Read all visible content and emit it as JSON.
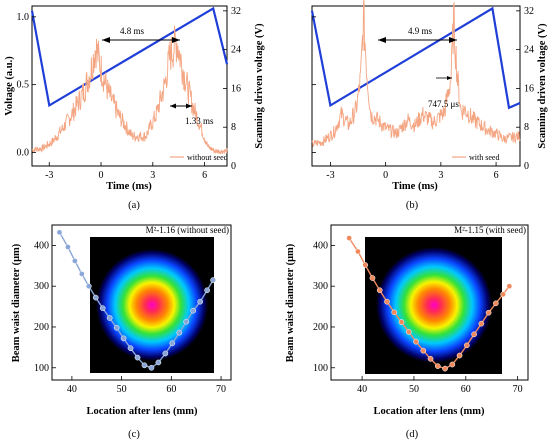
{
  "chart_data": [
    {
      "panel_label": "(a)",
      "type": "line",
      "xlabel": "Time (ms)",
      "ylabel_left": "Voltage (a.u.)",
      "ylabel_right": "Scanning driven voltage (V)",
      "xlim": [
        -4,
        7.3
      ],
      "ylim_left": [
        -0.1,
        1.08
      ],
      "ylim_right": [
        0,
        33
      ],
      "xticks": [
        "-3",
        "0",
        "3",
        "6"
      ],
      "yticks_left": [
        "0.0",
        "0.5",
        "1.0"
      ],
      "yticks_right": [
        "0",
        "8",
        "16",
        "24",
        "32"
      ],
      "legend": [
        {
          "label": "without seed",
          "color": "#f4a582"
        }
      ],
      "annotations": [
        "4.8 ms",
        "1.33 ms"
      ],
      "series": [
        {
          "axis": "right",
          "color": "#1f3fd8",
          "x": [
            -4,
            -3,
            6.5,
            7.3
          ],
          "y": [
            32,
            12.5,
            32.5,
            21
          ]
        },
        {
          "axis": "left",
          "name": "without seed",
          "color": "#f4a582",
          "x": [
            -4,
            -3.4,
            -2.8,
            -2.2,
            -1.6,
            -1.0,
            -0.6,
            -0.3,
            0.0,
            0.4,
            1.0,
            1.8,
            2.6,
            3.2,
            3.7,
            4.0,
            4.4,
            4.8,
            5.3,
            5.8,
            6.2,
            6.6,
            7.3
          ],
          "y": [
            0.02,
            0.03,
            0.08,
            0.18,
            0.3,
            0.45,
            0.6,
            0.78,
            0.62,
            0.45,
            0.28,
            0.12,
            0.12,
            0.28,
            0.5,
            0.72,
            0.82,
            0.58,
            0.35,
            0.18,
            0.04,
            0.01,
            0.01
          ]
        }
      ]
    },
    {
      "panel_label": "(b)",
      "type": "line",
      "xlabel": "Time (ms)",
      "ylabel_right": "Scanning driven voltage (V)",
      "xlim": [
        -4,
        7.3
      ],
      "ylim_left": [
        -0.1,
        1.08
      ],
      "ylim_right": [
        0,
        33
      ],
      "xticks": [
        "-3",
        "0",
        "3",
        "6"
      ],
      "yticks_right": [
        "0",
        "8",
        "16",
        "24",
        "32"
      ],
      "legend": [
        {
          "label": "with seed",
          "color": "#f4a582"
        }
      ],
      "annotations": [
        "4.9 ms",
        "747.5 μs"
      ],
      "series": [
        {
          "axis": "right",
          "color": "#1f3fd8",
          "x": [
            -4,
            -3,
            5.8,
            6.7,
            7.3
          ],
          "y": [
            32,
            12.5,
            32.5,
            12,
            13
          ]
        },
        {
          "axis": "left",
          "name": "with seed",
          "color": "#f4a582",
          "x": [
            -4,
            -3.4,
            -2.8,
            -2.4,
            -2.0,
            -1.6,
            -1.35,
            -1.2,
            -1.0,
            -0.8,
            -0.5,
            0.0,
            0.6,
            1.2,
            1.6,
            2.0,
            2.6,
            3.2,
            3.55,
            3.7,
            3.9,
            4.1,
            4.3,
            4.7,
            5.2,
            5.6,
            6.0,
            6.4,
            7.3
          ],
          "y": [
            0.06,
            0.08,
            0.15,
            0.28,
            0.2,
            0.32,
            0.55,
            1.0,
            0.55,
            0.28,
            0.25,
            0.18,
            0.14,
            0.24,
            0.2,
            0.28,
            0.22,
            0.3,
            0.55,
            0.98,
            0.55,
            0.3,
            0.32,
            0.25,
            0.2,
            0.16,
            0.14,
            0.1,
            0.12
          ]
        }
      ]
    },
    {
      "panel_label": "(c)",
      "type": "scatter",
      "xlabel": "Location after lens (mm)",
      "ylabel": "Beam waist diameter (μm)",
      "xlim": [
        36,
        72
      ],
      "ylim": [
        70,
        450
      ],
      "xticks": [
        "40",
        "50",
        "60",
        "70"
      ],
      "yticks": [
        "100",
        "200",
        "300",
        "400"
      ],
      "inset_label": "M²-1.16 (without seed)",
      "series": [
        {
          "color": "#8aa6d6",
          "x": [
            37.5,
            39.2,
            40.6,
            42.0,
            43.4,
            44.8,
            46.2,
            47.6,
            49.0,
            50.4,
            51.8,
            53.2,
            54.6,
            56.0,
            57.4,
            58.8,
            60.2,
            61.6,
            63.0,
            64.4,
            65.8,
            67.2,
            68.4
          ],
          "y": [
            432,
            396,
            362,
            330,
            300,
            272,
            246,
            222,
            198,
            172,
            148,
            125,
            106,
            100,
            113,
            135,
            160,
            186,
            213,
            240,
            262,
            290,
            315
          ]
        }
      ]
    },
    {
      "panel_label": "(d)",
      "type": "scatter",
      "xlabel": "Location after lens (mm)",
      "ylabel": "Beam waist diameter (μm)",
      "xlim": [
        34,
        72
      ],
      "ylim": [
        70,
        450
      ],
      "xticks": [
        "40",
        "50",
        "60",
        "70"
      ],
      "yticks": [
        "100",
        "200",
        "300",
        "400"
      ],
      "inset_label": "M²-1.15 (with seed)",
      "series": [
        {
          "color": "#f08a5d",
          "x": [
            37.5,
            39.2,
            40.6,
            42.0,
            43.4,
            44.8,
            46.2,
            47.6,
            49.0,
            50.4,
            51.8,
            53.2,
            54.6,
            56.0,
            57.4,
            58.8,
            60.2,
            61.6,
            63.0,
            64.4,
            65.8,
            67.2,
            68.4
          ],
          "y": [
            418,
            385,
            352,
            320,
            290,
            262,
            236,
            212,
            188,
            164,
            142,
            122,
            104,
            98,
            108,
            130,
            155,
            182,
            208,
            235,
            258,
            280,
            300
          ]
        }
      ]
    }
  ]
}
